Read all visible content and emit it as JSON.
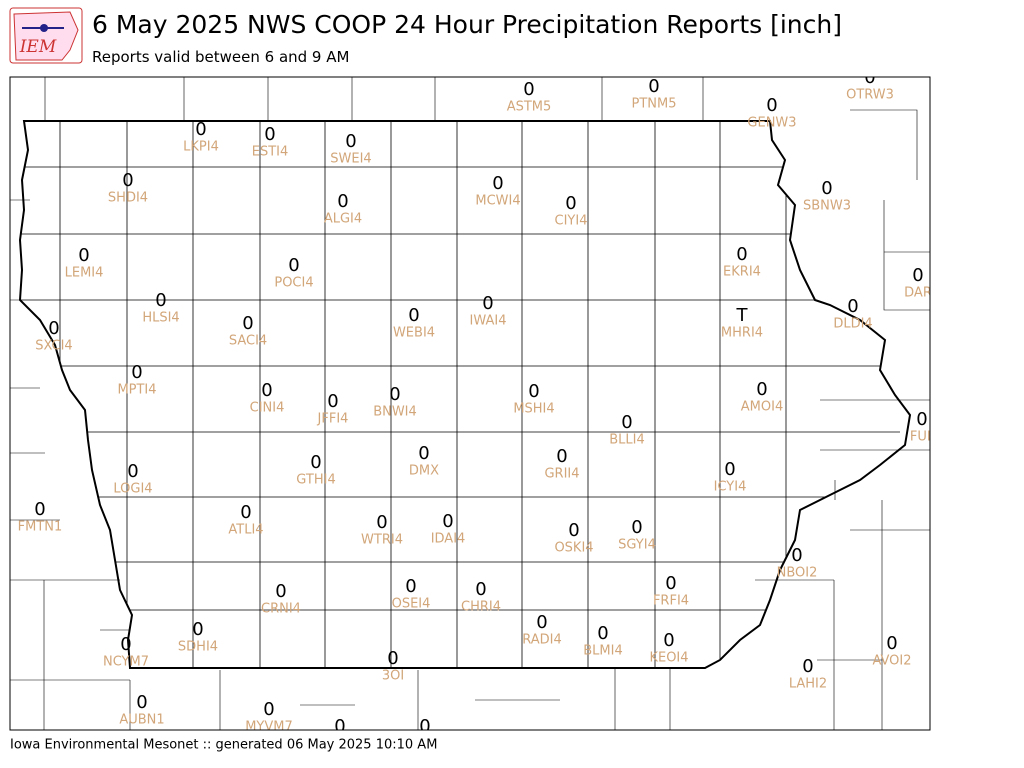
{
  "logo": "IEM",
  "header": {
    "title": "6 May 2025 NWS COOP 24 Hour Precipitation Reports [inch]",
    "subtitle": "Reports valid between 6 and 9 AM"
  },
  "footer": "Iowa Environmental Mesonet :: generated 06 May 2025 10:10 AM",
  "stations": [
    {
      "value": "0",
      "label": "ASTM5"
    },
    {
      "value": "0",
      "label": "PTNM5"
    },
    {
      "value": "0",
      "label": "OTRW3"
    },
    {
      "value": "0",
      "label": "GENW3"
    },
    {
      "value": "0",
      "label": "LKPI4"
    },
    {
      "value": "0",
      "label": "ESTI4"
    },
    {
      "value": "0",
      "label": "SWEI4"
    },
    {
      "value": "0",
      "label": "SHDI4"
    },
    {
      "value": "0",
      "label": "MCWI4"
    },
    {
      "value": "0",
      "label": "CIYI4"
    },
    {
      "value": "0",
      "label": "ALGI4"
    },
    {
      "value": "0",
      "label": "SBNW3"
    },
    {
      "value": "0",
      "label": "LEMI4"
    },
    {
      "value": "0",
      "label": "EKRI4"
    },
    {
      "value": "0",
      "label": "POCI4"
    },
    {
      "value": "0",
      "label": "DAR"
    },
    {
      "value": "0",
      "label": "HLSI4"
    },
    {
      "value": "0",
      "label": "IWAI4"
    },
    {
      "value": "0",
      "label": "DLDI4"
    },
    {
      "value": "0",
      "label": "WEBI4"
    },
    {
      "value": "T",
      "label": "MHRI4"
    },
    {
      "value": "0",
      "label": "SXCI4"
    },
    {
      "value": "0",
      "label": "SACI4"
    },
    {
      "value": "0",
      "label": "MPTI4"
    },
    {
      "value": "0",
      "label": "MSHI4"
    },
    {
      "value": "0",
      "label": "CINI4"
    },
    {
      "value": "0",
      "label": "AMOI4"
    },
    {
      "value": "0",
      "label": "JFFI4"
    },
    {
      "value": "0",
      "label": "BNWI4"
    },
    {
      "value": "0",
      "label": "FUL"
    },
    {
      "value": "0",
      "label": "BLLI4"
    },
    {
      "value": "0",
      "label": "DMX"
    },
    {
      "value": "0",
      "label": "GTHI4"
    },
    {
      "value": "0",
      "label": "GRII4"
    },
    {
      "value": "0",
      "label": "LOGI4"
    },
    {
      "value": "0",
      "label": "ICYI4"
    },
    {
      "value": "0",
      "label": "FMTN1"
    },
    {
      "value": "0",
      "label": "ATLI4"
    },
    {
      "value": "0",
      "label": "WTRI4"
    },
    {
      "value": "0",
      "label": "IDAI4"
    },
    {
      "value": "0",
      "label": "OSKI4"
    },
    {
      "value": "0",
      "label": "SGYI4"
    },
    {
      "value": "0",
      "label": "NBOI2"
    },
    {
      "value": "0",
      "label": "OSEI4"
    },
    {
      "value": "0",
      "label": "CHRI4"
    },
    {
      "value": "0",
      "label": "CRNI4"
    },
    {
      "value": "0",
      "label": "FRFI4"
    },
    {
      "value": "0",
      "label": "RADI4"
    },
    {
      "value": "0",
      "label": "BLMI4"
    },
    {
      "value": "0",
      "label": "SDHI4"
    },
    {
      "value": "0",
      "label": "NCYM7"
    },
    {
      "value": "0",
      "label": "KEOI4"
    },
    {
      "value": "0",
      "label": "AVOI2"
    },
    {
      "value": "0",
      "label": "3OI"
    },
    {
      "value": "0",
      "label": "LAHI2"
    },
    {
      "value": "0",
      "label": "AUBN1"
    },
    {
      "value": "0",
      "label": "MYVM7"
    },
    {
      "value": "0"
    },
    {
      "value": "0"
    }
  ]
}
